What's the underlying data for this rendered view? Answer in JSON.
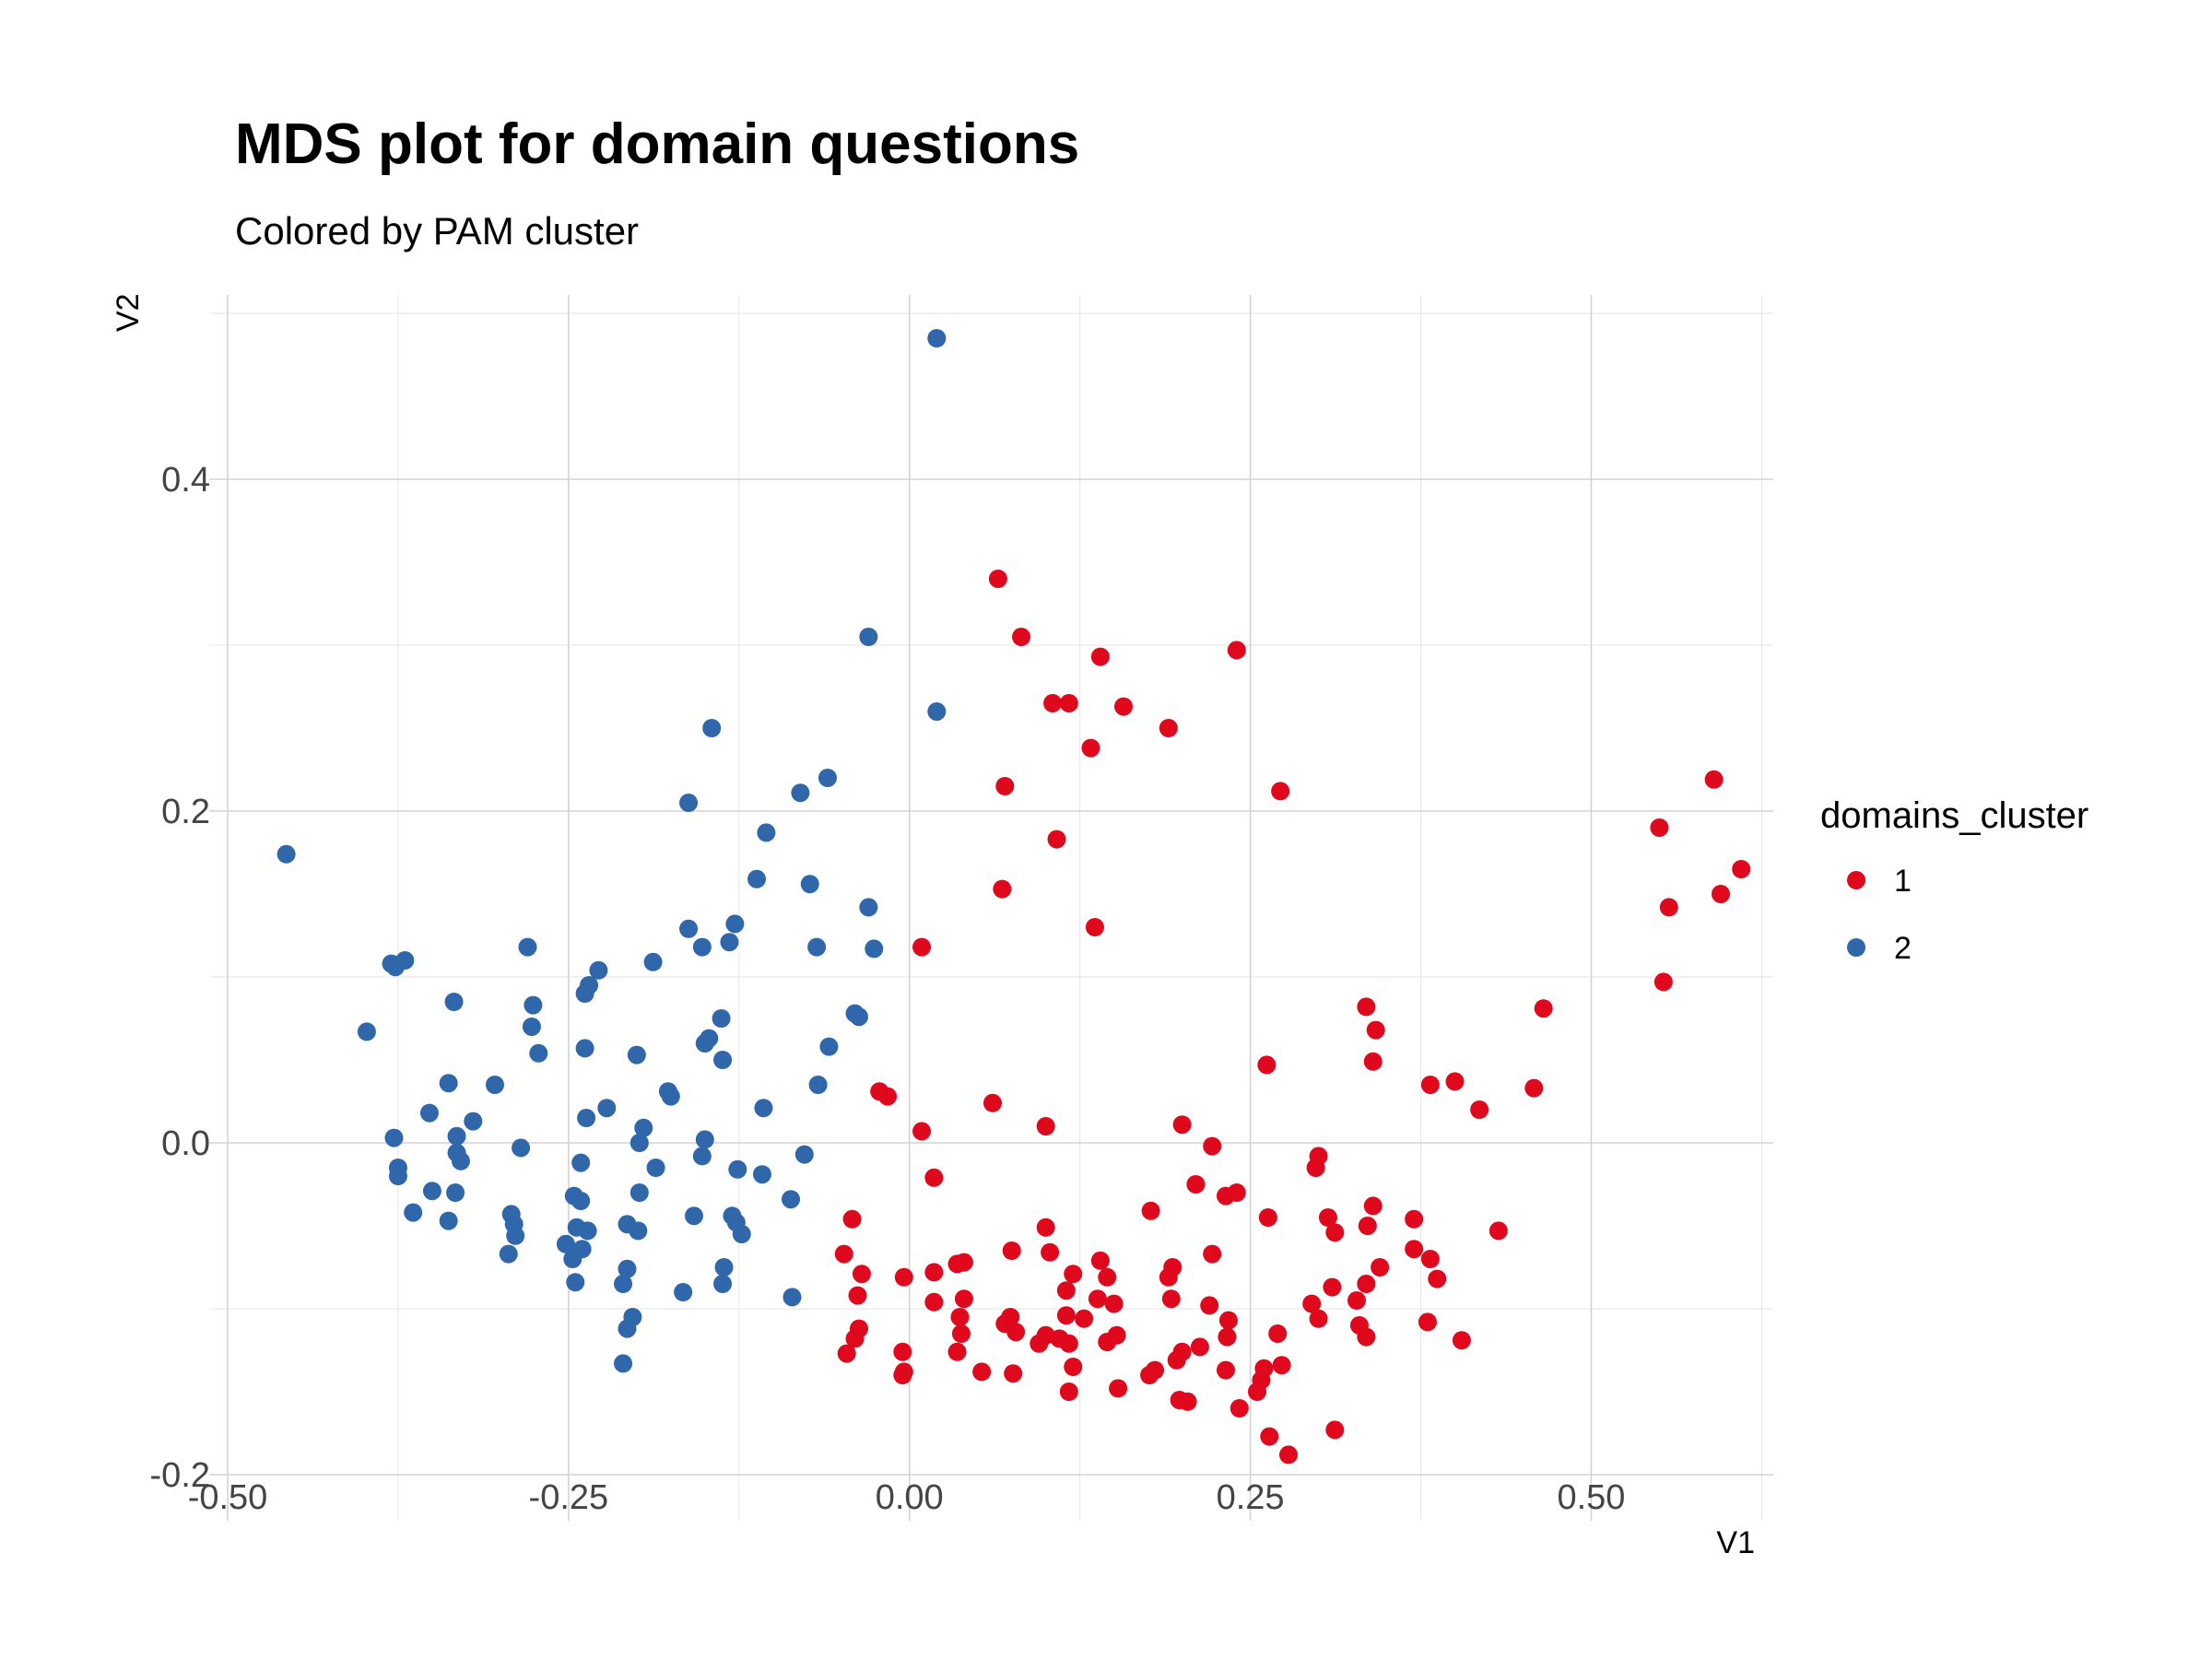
{
  "chart_data": {
    "type": "scatter",
    "title": "MDS plot for domain questions",
    "subtitle": "Colored by PAM cluster",
    "xlabel": "V1",
    "ylabel": "V2",
    "xlim": [
      -0.5,
      0.62
    ],
    "ylim": [
      -0.2,
      0.5
    ],
    "x_ticks": [
      -0.5,
      -0.25,
      0.0,
      0.25,
      0.5
    ],
    "x_tick_labels": [
      "-0.50",
      "-0.25",
      "0.00",
      "0.25",
      "0.50"
    ],
    "y_ticks": [
      -0.2,
      0.0,
      0.2,
      0.4
    ],
    "y_tick_labels": [
      "-0.2",
      "0.0",
      "0.2",
      "0.4"
    ],
    "grid": true,
    "legend": {
      "title": "domains_cluster",
      "position": "right",
      "entries": [
        {
          "label": "1",
          "color": "#e0081c"
        },
        {
          "label": "2",
          "color": "#3067ab"
        }
      ]
    },
    "series": [
      {
        "name": "1",
        "color": "#e0081c",
        "points": [
          [
            0.065,
            0.34
          ],
          [
            0.082,
            0.305
          ],
          [
            0.14,
            0.293
          ],
          [
            0.24,
            0.297
          ],
          [
            0.105,
            0.265
          ],
          [
            0.117,
            0.265
          ],
          [
            0.157,
            0.263
          ],
          [
            0.19,
            0.25
          ],
          [
            0.133,
            0.238
          ],
          [
            0.07,
            0.215
          ],
          [
            0.272,
            0.212
          ],
          [
            0.108,
            0.183
          ],
          [
            0.068,
            0.153
          ],
          [
            0.136,
            0.13
          ],
          [
            0.009,
            0.118
          ],
          [
            0.59,
            0.219
          ],
          [
            0.55,
            0.19
          ],
          [
            0.557,
            0.142
          ],
          [
            0.595,
            0.15
          ],
          [
            0.61,
            0.165
          ],
          [
            0.553,
            0.097
          ],
          [
            0.335,
            0.082
          ],
          [
            0.342,
            0.068
          ],
          [
            0.465,
            0.081
          ],
          [
            0.262,
            0.047
          ],
          [
            0.34,
            0.049
          ],
          [
            0.382,
            0.035
          ],
          [
            0.4,
            0.037
          ],
          [
            0.458,
            0.033
          ],
          [
            0.418,
            0.02
          ],
          [
            -0.022,
            0.031
          ],
          [
            -0.016,
            0.028
          ],
          [
            0.061,
            0.024
          ],
          [
            0.1,
            0.01
          ],
          [
            0.2,
            0.011
          ],
          [
            0.009,
            0.007
          ],
          [
            0.222,
            -0.002
          ],
          [
            0.3,
            -0.008
          ],
          [
            0.298,
            -0.015
          ],
          [
            0.018,
            -0.021
          ],
          [
            0.21,
            -0.025
          ],
          [
            0.24,
            -0.03
          ],
          [
            0.232,
            -0.032
          ],
          [
            0.177,
            -0.041
          ],
          [
            0.263,
            -0.045
          ],
          [
            0.307,
            -0.045
          ],
          [
            0.34,
            -0.038
          ],
          [
            0.37,
            -0.046
          ],
          [
            0.432,
            -0.053
          ],
          [
            -0.042,
            -0.046
          ],
          [
            0.1,
            -0.051
          ],
          [
            0.312,
            -0.054
          ],
          [
            0.336,
            -0.05
          ],
          [
            -0.048,
            -0.067
          ],
          [
            0.075,
            -0.065
          ],
          [
            0.103,
            -0.066
          ],
          [
            0.222,
            -0.067
          ],
          [
            0.37,
            -0.064
          ],
          [
            0.382,
            -0.07
          ],
          [
            0.14,
            -0.071
          ],
          [
            0.193,
            -0.075
          ],
          [
            0.035,
            -0.073
          ],
          [
            0.04,
            -0.072
          ],
          [
            0.018,
            -0.078
          ],
          [
            -0.035,
            -0.079
          ],
          [
            -0.004,
            -0.081
          ],
          [
            0.12,
            -0.079
          ],
          [
            0.145,
            -0.081
          ],
          [
            0.19,
            -0.081
          ],
          [
            0.345,
            -0.075
          ],
          [
            0.335,
            -0.085
          ],
          [
            0.387,
            -0.082
          ],
          [
            0.115,
            -0.089
          ],
          [
            -0.038,
            -0.092
          ],
          [
            0.04,
            -0.094
          ],
          [
            0.192,
            -0.094
          ],
          [
            0.138,
            -0.094
          ],
          [
            0.31,
            -0.087
          ],
          [
            0.018,
            -0.096
          ],
          [
            0.15,
            -0.097
          ],
          [
            0.22,
            -0.098
          ],
          [
            0.328,
            -0.095
          ],
          [
            0.295,
            -0.097
          ],
          [
            0.037,
            -0.105
          ],
          [
            0.115,
            -0.104
          ],
          [
            0.128,
            -0.106
          ],
          [
            0.234,
            -0.107
          ],
          [
            0.3,
            -0.106
          ],
          [
            0.38,
            -0.108
          ],
          [
            0.07,
            -0.109
          ],
          [
            0.074,
            -0.105
          ],
          [
            0.33,
            -0.11
          ],
          [
            -0.037,
            -0.112
          ],
          [
            0.078,
            -0.114
          ],
          [
            0.1,
            -0.116
          ],
          [
            0.038,
            -0.115
          ],
          [
            0.11,
            -0.118
          ],
          [
            0.152,
            -0.116
          ],
          [
            0.27,
            -0.115
          ],
          [
            0.335,
            -0.117
          ],
          [
            0.405,
            -0.119
          ],
          [
            0.095,
            -0.121
          ],
          [
            0.117,
            -0.121
          ],
          [
            0.145,
            -0.12
          ],
          [
            0.233,
            -0.117
          ],
          [
            -0.04,
            -0.118
          ],
          [
            0.213,
            -0.123
          ],
          [
            0.2,
            -0.126
          ],
          [
            -0.046,
            -0.127
          ],
          [
            -0.005,
            -0.126
          ],
          [
            0.035,
            -0.126
          ],
          [
            0.196,
            -0.131
          ],
          [
            0.273,
            -0.134
          ],
          [
            0.12,
            -0.135
          ],
          [
            0.18,
            -0.137
          ],
          [
            0.176,
            -0.14
          ],
          [
            0.232,
            -0.137
          ],
          [
            0.26,
            -0.136
          ],
          [
            -0.004,
            -0.138
          ],
          [
            -0.005,
            -0.14
          ],
          [
            0.053,
            -0.138
          ],
          [
            0.076,
            -0.139
          ],
          [
            0.258,
            -0.143
          ],
          [
            0.153,
            -0.148
          ],
          [
            0.117,
            -0.15
          ],
          [
            0.255,
            -0.15
          ],
          [
            0.198,
            -0.155
          ],
          [
            0.204,
            -0.156
          ],
          [
            0.242,
            -0.16
          ],
          [
            0.264,
            -0.177
          ],
          [
            0.312,
            -0.173
          ],
          [
            0.278,
            -0.188
          ]
        ]
      },
      {
        "name": "2",
        "color": "#3067ab",
        "points": [
          [
            0.02,
            0.485
          ],
          [
            -0.03,
            0.305
          ],
          [
            0.02,
            0.26
          ],
          [
            -0.145,
            0.25
          ],
          [
            -0.06,
            0.22
          ],
          [
            -0.08,
            0.211
          ],
          [
            -0.162,
            0.205
          ],
          [
            -0.457,
            0.174
          ],
          [
            -0.105,
            0.187
          ],
          [
            -0.112,
            0.159
          ],
          [
            -0.073,
            0.156
          ],
          [
            -0.03,
            0.142
          ],
          [
            -0.128,
            0.132
          ],
          [
            -0.162,
            0.129
          ],
          [
            -0.152,
            0.118
          ],
          [
            -0.132,
            0.121
          ],
          [
            -0.068,
            0.118
          ],
          [
            -0.026,
            0.117
          ],
          [
            -0.28,
            0.118
          ],
          [
            -0.37,
            0.11
          ],
          [
            -0.38,
            0.108
          ],
          [
            -0.377,
            0.106
          ],
          [
            -0.188,
            0.109
          ],
          [
            -0.228,
            0.104
          ],
          [
            -0.235,
            0.095
          ],
          [
            -0.238,
            0.09
          ],
          [
            -0.334,
            0.085
          ],
          [
            -0.276,
            0.083
          ],
          [
            -0.04,
            0.078
          ],
          [
            -0.037,
            0.076
          ],
          [
            -0.138,
            0.075
          ],
          [
            -0.398,
            0.067
          ],
          [
            -0.277,
            0.07
          ],
          [
            -0.15,
            0.06
          ],
          [
            -0.147,
            0.063
          ],
          [
            -0.059,
            0.058
          ],
          [
            -0.238,
            0.057
          ],
          [
            -0.272,
            0.054
          ],
          [
            -0.2,
            0.053
          ],
          [
            -0.137,
            0.05
          ],
          [
            -0.338,
            0.036
          ],
          [
            -0.304,
            0.035
          ],
          [
            -0.067,
            0.035
          ],
          [
            -0.177,
            0.031
          ],
          [
            -0.175,
            0.028
          ],
          [
            -0.222,
            0.021
          ],
          [
            -0.352,
            0.018
          ],
          [
            -0.107,
            0.021
          ],
          [
            -0.237,
            0.015
          ],
          [
            -0.32,
            0.013
          ],
          [
            -0.195,
            0.009
          ],
          [
            -0.378,
            0.003
          ],
          [
            -0.332,
            0.004
          ],
          [
            -0.15,
            0.002
          ],
          [
            -0.285,
            -0.003
          ],
          [
            -0.332,
            -0.006
          ],
          [
            -0.329,
            -0.011
          ],
          [
            -0.198,
            0.0
          ],
          [
            -0.077,
            -0.007
          ],
          [
            -0.152,
            -0.008
          ],
          [
            -0.241,
            -0.012
          ],
          [
            -0.186,
            -0.015
          ],
          [
            -0.375,
            -0.015
          ],
          [
            -0.126,
            -0.016
          ],
          [
            -0.375,
            -0.02
          ],
          [
            -0.108,
            -0.019
          ],
          [
            -0.35,
            -0.029
          ],
          [
            -0.333,
            -0.03
          ],
          [
            -0.198,
            -0.03
          ],
          [
            -0.246,
            -0.032
          ],
          [
            -0.241,
            -0.035
          ],
          [
            -0.087,
            -0.034
          ],
          [
            -0.364,
            -0.042
          ],
          [
            -0.292,
            -0.043
          ],
          [
            -0.158,
            -0.044
          ],
          [
            -0.13,
            -0.044
          ],
          [
            -0.338,
            -0.047
          ],
          [
            -0.29,
            -0.049
          ],
          [
            -0.127,
            -0.048
          ],
          [
            -0.207,
            -0.049
          ],
          [
            -0.244,
            -0.051
          ],
          [
            -0.236,
            -0.053
          ],
          [
            -0.199,
            -0.053
          ],
          [
            -0.289,
            -0.056
          ],
          [
            -0.123,
            -0.055
          ],
          [
            -0.252,
            -0.061
          ],
          [
            -0.24,
            -0.064
          ],
          [
            -0.294,
            -0.067
          ],
          [
            -0.247,
            -0.07
          ],
          [
            -0.207,
            -0.076
          ],
          [
            -0.136,
            -0.075
          ],
          [
            -0.245,
            -0.084
          ],
          [
            -0.21,
            -0.085
          ],
          [
            -0.137,
            -0.085
          ],
          [
            -0.166,
            -0.09
          ],
          [
            -0.086,
            -0.093
          ],
          [
            -0.203,
            -0.105
          ],
          [
            -0.207,
            -0.112
          ],
          [
            -0.21,
            -0.133
          ]
        ]
      }
    ]
  }
}
